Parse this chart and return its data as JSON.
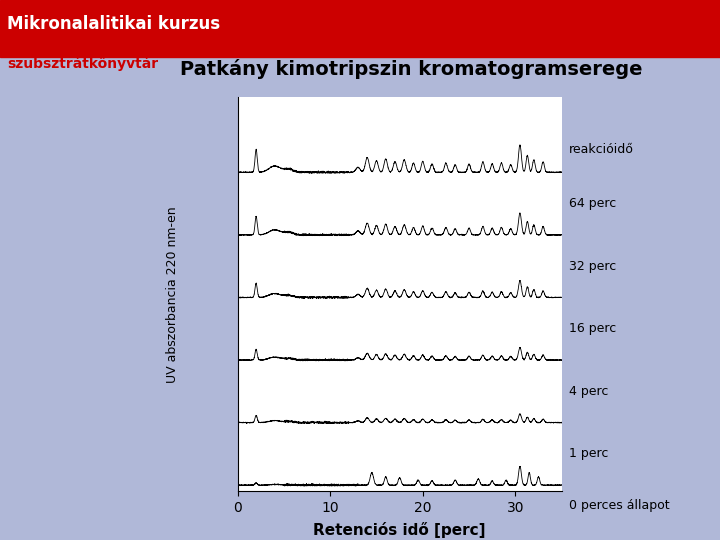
{
  "bg_color": "#b0b8d8",
  "plot_bg_color": "#ffffff",
  "title_main": "Patkány kimotripszin kromatogramserege",
  "title_line1": "Mikronalalitikai kurzus",
  "title_line2": "szubsztrátkönyvtár",
  "title_line1_color": "#ffffff",
  "title_line2_color": "#cc0000",
  "title_main_color": "#000000",
  "ylabel": "UV abszorbancia 220 nm-en",
  "xlabel": "Retenciós idő [perc]",
  "reakcioidő_label": "reakcióidő",
  "series_labels": [
    "64 perc",
    "32 perc",
    "16 perc",
    "4 perc",
    "1 perc",
    "0 perces állapot"
  ],
  "x_min": 0,
  "x_max": 35,
  "x_ticks": [
    0,
    10,
    20,
    30
  ],
  "header_bg_color": "#cc0000"
}
